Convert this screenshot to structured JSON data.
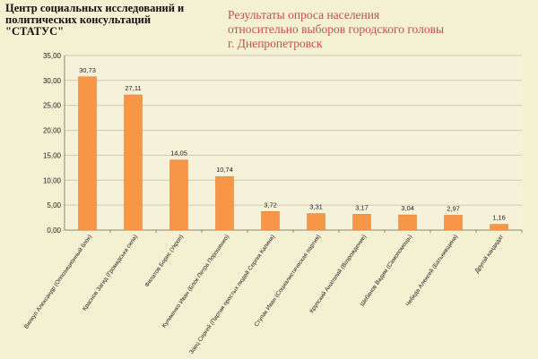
{
  "header": {
    "org_lines": [
      "Центр социальных исследований и",
      "политических консультаций",
      "\"СТАТУС\""
    ],
    "title_lines": [
      "Результаты опроса населения",
      "относительно выборов городского головы",
      "г. Днепропетровск"
    ]
  },
  "chart_data": {
    "type": "bar",
    "title": "",
    "xlabel": "",
    "ylabel": "",
    "ylim": [
      0,
      35
    ],
    "yticks": [
      "0,00",
      "5,00",
      "10,00",
      "15,00",
      "20,00",
      "25,00",
      "30,00",
      "35,00"
    ],
    "grid": true,
    "bar_color": "#f79646",
    "categories": [
      "Вилкул Александр (Оппозиционный блок)",
      "Краснов Загид (Громадська сила)",
      "Филатов Борис (Укроп)",
      "Куликенко Иван (Блок Петра Порошенко)",
      "Заец Сергей (Партия простых людей Сергея Капина)",
      "Ступак Иван (Социалистическая партия)",
      "Крупский Анатолий (Возрождение)",
      "Шебанов Вадим (Самопомощь)",
      "Чебеда Алексей (Батькивщина)",
      "Другой кандидат"
    ],
    "values": [
      30.73,
      27.11,
      14.05,
      10.74,
      3.72,
      3.31,
      3.17,
      3.04,
      2.97,
      1.16
    ],
    "value_labels": [
      "30,73",
      "27,11",
      "14,05",
      "10,74",
      "3,72",
      "3,31",
      "3,17",
      "3,04",
      "2,97",
      "1,16"
    ]
  }
}
